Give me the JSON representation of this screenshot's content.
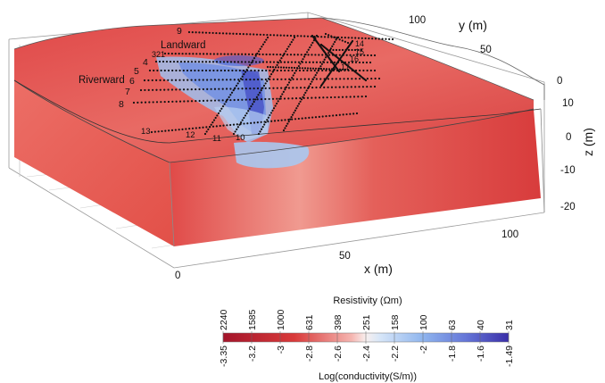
{
  "model": {
    "annotations": {
      "landward": "Landward",
      "riverward": "Riverward"
    },
    "line_numbers": [
      "9",
      "321",
      "4",
      "5",
      "6",
      "7",
      "8",
      "13",
      "12",
      "11",
      "10",
      "14",
      "15",
      "16",
      "17"
    ],
    "axes": {
      "x_title": "x (m)",
      "y_title": "y (m)",
      "z_title": "z (m)",
      "x_ticks": [
        "0",
        "50",
        "100"
      ],
      "y_ticks": [
        "100",
        "50",
        "0"
      ],
      "z_ticks": [
        "10",
        "0",
        "-10",
        "-20"
      ],
      "z_top_tick": "0"
    }
  },
  "colorbar": {
    "title": "Resistivity (Ωm)",
    "top_ticks": [
      "2240",
      "1585",
      "1000",
      "631",
      "398",
      "251",
      "158",
      "100",
      "63",
      "40",
      "31"
    ],
    "bottom_ticks": [
      "-3.35",
      "-3.2",
      "-3",
      "-2.8",
      "-2.6",
      "-2.4",
      "-2.2",
      "-2",
      "-1.8",
      "-1.6",
      "-1.49"
    ],
    "bottom_title": "Log(conductivity(S/m))",
    "colors": {
      "low_conductivity": "#b2182b",
      "mid_red": "#e05050",
      "neutral": "#f7f7f7",
      "light_blue": "#a8c8ef",
      "high_conductivity": "#4040b0"
    }
  }
}
